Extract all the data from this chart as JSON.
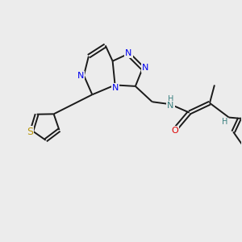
{
  "bg_color": "#ececec",
  "bond_color": "#1a1a1a",
  "N_color": "#0000ee",
  "S_color": "#b8960c",
  "O_color": "#dd0000",
  "H_color": "#3a8080",
  "font_size": 8,
  "line_width": 1.4,
  "xlim": [
    0,
    10
  ],
  "ylim": [
    0,
    10
  ]
}
